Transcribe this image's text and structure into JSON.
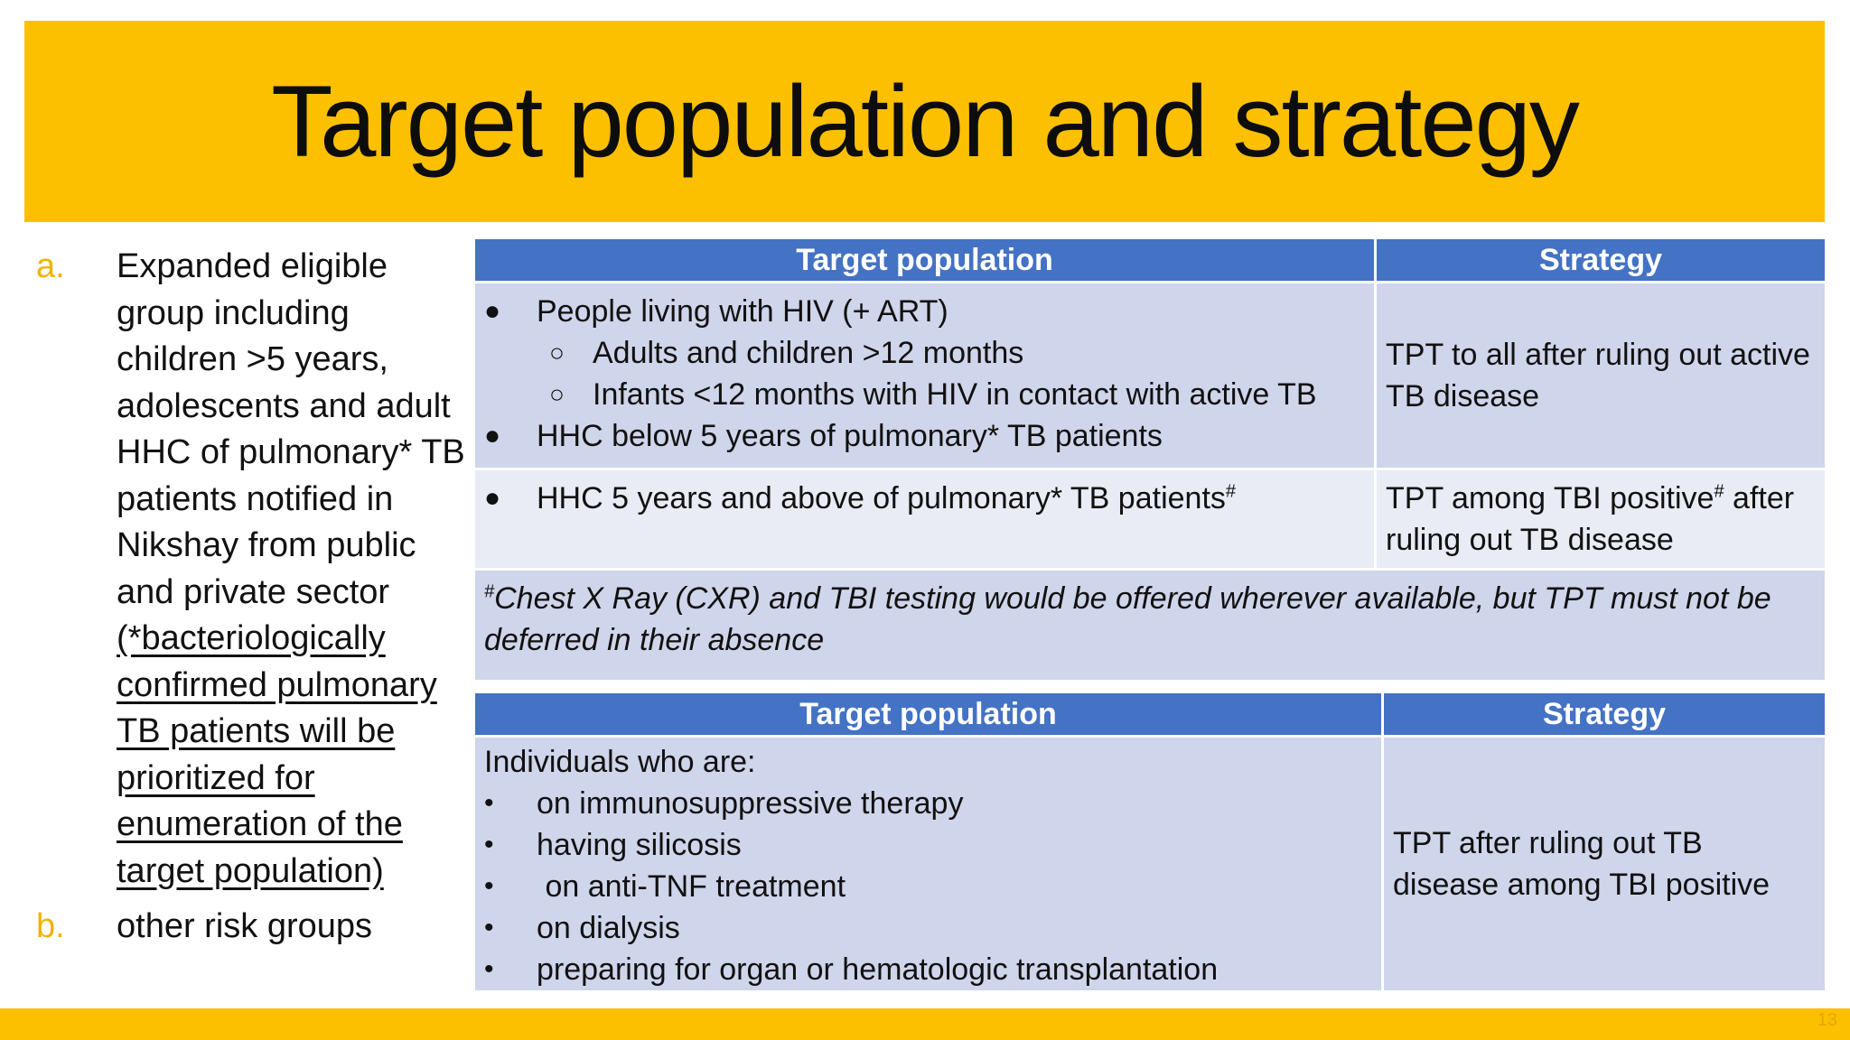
{
  "title": "Target population and strategy",
  "page_number": "13",
  "left": {
    "a_marker": "a.",
    "a_text": "Expanded eligible group including children >5 years, adolescents and adult HHC of  pulmonary* TB patients notified in Nikshay from public and private sector",
    "a_note": "(*bacteriologically confirmed pulmonary TB patients will be prioritized for enumeration of the target population)",
    "b_marker": "b.",
    "b_text": "other risk groups"
  },
  "table1": {
    "col_population": "Target population",
    "col_strategy": "Strategy",
    "row1": {
      "bullet1": "People living with HIV (+ ART)",
      "sub1": "Adults and children >12 months",
      "sub2": "Infants <12 months with HIV in contact with active TB",
      "bullet2": "HHC below 5 years of pulmonary* TB patients",
      "strategy": "TPT to all after ruling out active TB disease"
    },
    "row2": {
      "bullet1": "HHC 5 years and above of pulmonary* TB patients",
      "bullet1_sup": "#",
      "strategy_part1": "TPT among TBI positive",
      "strategy_sup": "#",
      "strategy_part2": " after ruling out TB disease"
    },
    "footnote_mark": "#",
    "footnote": "Chest X Ray (CXR) and TBI testing would be offered wherever available, but TPT must not be deferred in their absence"
  },
  "table2": {
    "col_population": "Target population",
    "col_strategy": "Strategy",
    "intro": "Individuals who are:",
    "items": [
      "on immunosuppressive therapy",
      "having silicosis",
      " on anti-TNF treatment",
      "on dialysis",
      "preparing for organ or hematologic transplantation"
    ],
    "strategy": "TPT after ruling out TB disease among TBI positive"
  },
  "colors": {
    "accent_yellow": "#fdc000",
    "header_blue": "#4472c4",
    "cell_dark": "#cfd5ea",
    "cell_light": "#e9ebf5"
  }
}
